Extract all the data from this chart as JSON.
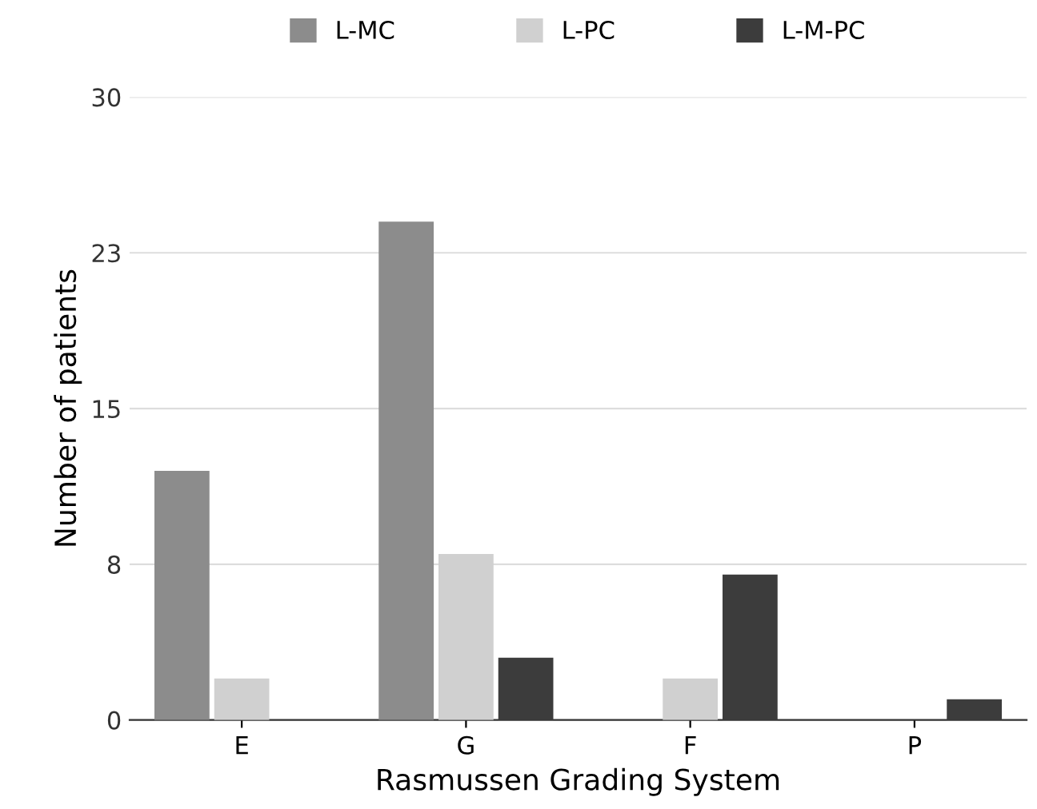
{
  "chart_data": {
    "type": "bar",
    "xlabel": "Rasmussen Grading System",
    "ylabel": "Number of patients",
    "categories": [
      "E",
      "G",
      "F",
      "P"
    ],
    "series": [
      {
        "name": "L-MC",
        "color": "#8c8c8c",
        "values": [
          12,
          24,
          0,
          0
        ]
      },
      {
        "name": "L-PC",
        "color": "#d0d0d0",
        "values": [
          2,
          8,
          2,
          0
        ]
      },
      {
        "name": "L-M-PC",
        "color": "#3c3c3c",
        "values": [
          0,
          3,
          7,
          1
        ]
      }
    ],
    "ylim": [
      0,
      30
    ],
    "yticks": [
      0,
      {
        "value": 7.5,
        "label": "8"
      },
      15,
      {
        "value": 22.5,
        "label": "23"
      },
      30
    ],
    "grid": "y",
    "legend": "top"
  }
}
